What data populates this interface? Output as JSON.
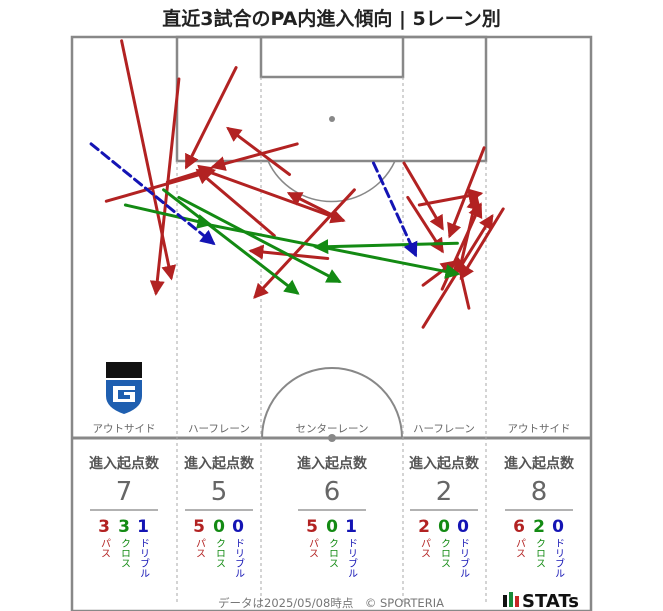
{
  "title": "直近3試合のPA内進入傾向 | 5レーン別",
  "lanes": [
    "アウトサイド",
    "ハーフレーン",
    "センターレーン",
    "ハーフレーン",
    "アウトサイド"
  ],
  "stat_header": "進入起点数",
  "type_labels": {
    "pass": "パス",
    "cross": "クロス",
    "dribble": "ドリブル"
  },
  "stats": [
    {
      "total": "7",
      "pass": "3",
      "cross": "3",
      "dribble": "1"
    },
    {
      "total": "5",
      "pass": "5",
      "cross": "0",
      "dribble": "0"
    },
    {
      "total": "6",
      "pass": "5",
      "cross": "0",
      "dribble": "1"
    },
    {
      "total": "2",
      "pass": "2",
      "cross": "0",
      "dribble": "0"
    },
    {
      "total": "8",
      "pass": "6",
      "cross": "2",
      "dribble": "0"
    }
  ],
  "colors": {
    "pass": "#b22222",
    "cross": "#138a13",
    "dribble": "#1414b4",
    "line": "#888888"
  },
  "footer": "データは2025/05/08時点　© SPORTERIA",
  "brand": "STATs",
  "chart_data": {
    "type": "scatter",
    "description_units": "pitch coordinates: x = width 0-68 m (left to right), y = distance from attacked goal line 0-52.5 m",
    "series": [
      {
        "name": "パス",
        "arrows": [
          [
            4.5,
            21.5,
            18.5,
            17.5
          ],
          [
            12.5,
            19.0,
            18.2,
            17.2
          ],
          [
            6.5,
            0.5,
            13.0,
            31.5
          ],
          [
            14.0,
            5.5,
            11.0,
            33.5
          ],
          [
            21.5,
            4.0,
            15.0,
            17.0
          ],
          [
            26.5,
            26.0,
            16.5,
            17.5
          ],
          [
            28.5,
            18.0,
            20.5,
            12.0
          ],
          [
            29.5,
            14.0,
            18.5,
            17.0
          ],
          [
            17.5,
            17.5,
            35.5,
            24.0
          ],
          [
            35.5,
            24.0,
            28.5,
            20.5
          ],
          [
            33.5,
            29.0,
            23.5,
            28.0
          ],
          [
            37.0,
            20.0,
            24.0,
            34.0
          ],
          [
            45.5,
            22.0,
            53.5,
            20.5
          ],
          [
            43.5,
            16.5,
            48.5,
            25.0
          ],
          [
            44.0,
            21.0,
            48.5,
            28.0
          ],
          [
            46.0,
            32.5,
            50.0,
            29.5
          ],
          [
            46.0,
            38.0,
            55.0,
            23.5
          ],
          [
            54.0,
            14.5,
            49.5,
            26.0
          ],
          [
            51.0,
            29.5,
            53.0,
            21.0
          ],
          [
            56.5,
            22.5,
            51.0,
            31.5
          ],
          [
            48.5,
            33.0,
            53.5,
            22.0
          ],
          [
            52.0,
            35.5,
            50.5,
            29.0
          ]
        ]
      },
      {
        "name": "クロス",
        "arrows": [
          [
            7.0,
            22.0,
            18.0,
            24.5
          ],
          [
            12.0,
            20.0,
            29.5,
            33.5
          ],
          [
            14.0,
            21.0,
            35.0,
            32.0
          ],
          [
            17.5,
            24.5,
            50.5,
            31.0
          ],
          [
            50.5,
            27.0,
            32.0,
            27.5
          ]
        ]
      },
      {
        "name": "ドリブル",
        "arrows": [
          [
            2.5,
            14.0,
            18.5,
            27.0
          ],
          [
            39.5,
            16.5,
            45.0,
            28.5
          ]
        ]
      }
    ]
  }
}
